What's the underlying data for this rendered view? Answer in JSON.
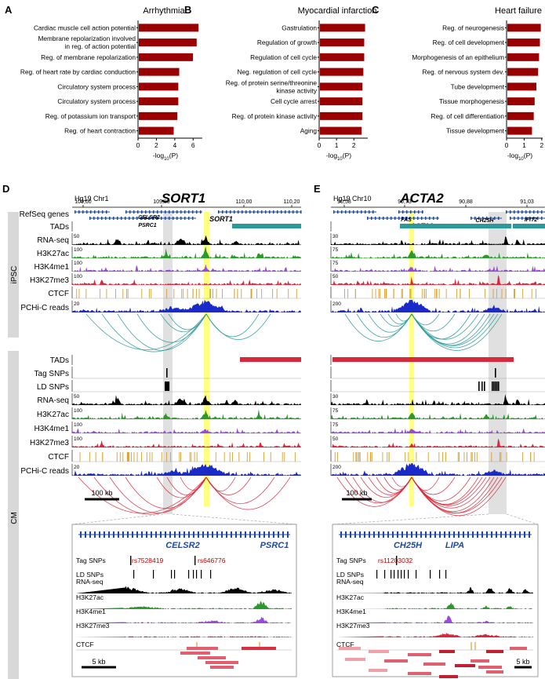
{
  "panels": [
    {
      "letter": "A",
      "title": "Arrhythmia",
      "terms": [
        "Cardiac muscle cell action potential",
        "Membrane repolarization involved|in reg. of action potential",
        "Reg. of membrane repolarization",
        "Reg. of heart rate by cardiac conduction",
        "Circulatory system process",
        "Circulatory system process",
        "Reg. of potassium ion transport",
        "Reg. of heart contraction"
      ],
      "values": [
        6.5,
        6.3,
        5.9,
        4.4,
        4.3,
        4.3,
        4.2,
        3.8
      ],
      "ticks": [
        0,
        2,
        4,
        6
      ],
      "xmax": 7
    },
    {
      "letter": "B",
      "title": "Myocardial infarction",
      "terms": [
        "Gastrulation",
        "Regulation of growth",
        "Regulation of cell cycle",
        "Neg. regulation of cell cycle",
        "Reg. of protein serine/threonine|kinase activity",
        "Cell cycle arrest",
        "Reg. of protein kinase activity",
        "Aging"
      ],
      "values": [
        2.6,
        2.55,
        2.55,
        2.5,
        2.45,
        2.45,
        2.45,
        2.4
      ],
      "ticks": [
        0,
        1,
        2
      ],
      "xmax": 2.8
    },
    {
      "letter": "C",
      "title": "Heart failure",
      "terms": [
        "Reg. of neurogenesis",
        "Reg. of cell development",
        "Morphogenesis of an epithelium",
        "Reg. of nervous system dev.",
        "Tube development",
        "Tissue morphogenesis",
        "Reg. of cell differentiation",
        "Tissue development"
      ],
      "values": [
        1.9,
        1.85,
        1.8,
        1.75,
        1.65,
        1.55,
        1.5,
        1.4
      ],
      "ticks": [
        0,
        1,
        2
      ],
      "xmax": 2.05
    }
  ],
  "xlabel_main": "-log",
  "xlabel_sub": "10",
  "xlabel_arg": "(P)",
  "browser": {
    "D": {
      "letter": "D",
      "assembly": "Hg19 Chr1",
      "gene": "SORT1",
      "ticks": [
        "109,60",
        "109,80",
        "110,00",
        "110,20"
      ],
      "refseq": [
        "CELSR2",
        "PSRC1",
        "SORT1"
      ],
      "scales": {
        "rna": "50",
        "k27ac": "100",
        "k4me1": "100",
        "k27me3": "100",
        "pchic": "20"
      },
      "scalebar": "100 kb"
    },
    "E": {
      "letter": "E",
      "assembly": "Hg19 Chr10",
      "gene": "ACTA2",
      "ticks": [
        "90,58",
        "90,73",
        "90,88",
        "91,03"
      ],
      "refseq": [
        "FAS",
        "ACTA2",
        "CH25H",
        "IFIT2",
        "LIPA"
      ],
      "scales": {
        "rna": "30",
        "k27ac": "75",
        "k4me1": "75",
        "k27me3": "50",
        "pchic": "200"
      },
      "scalebar": "100 kb"
    }
  },
  "track_labels": {
    "refseq": "RefSeq genes",
    "tads": "TADs",
    "tag": "Tag SNPs",
    "ld": "LD SNPs",
    "rna": "RNA-seq",
    "k27ac": "H3K27ac",
    "k4me1": "H3K4me1",
    "k27me3": "H3K27me3",
    "ctcf": "CTCF",
    "pchic": "PCHi-C reads"
  },
  "groups": {
    "ipsc": "iPSC",
    "cm": "CM"
  },
  "zoomD": {
    "genes": [
      "CELSR2",
      "PSRC1"
    ],
    "snps": [
      "rs7528419",
      "rs646776"
    ],
    "scalebar": "5 kb"
  },
  "zoomE": {
    "genes": [
      "CH25H",
      "LIPA"
    ],
    "snps": [
      "rs11203032"
    ],
    "scalebar": "5 kb"
  },
  "colors": {
    "bar": "#9b0000",
    "teal": "#2a9a9a",
    "red": "#d8283b",
    "blue": "#1a2ac8",
    "green": "#2a9a2a",
    "purple": "#9a4ad8",
    "gold": "#d8a030",
    "gene": "#1a4aa8",
    "highlight": "#ffff80",
    "grey": "#d8d8d8"
  }
}
